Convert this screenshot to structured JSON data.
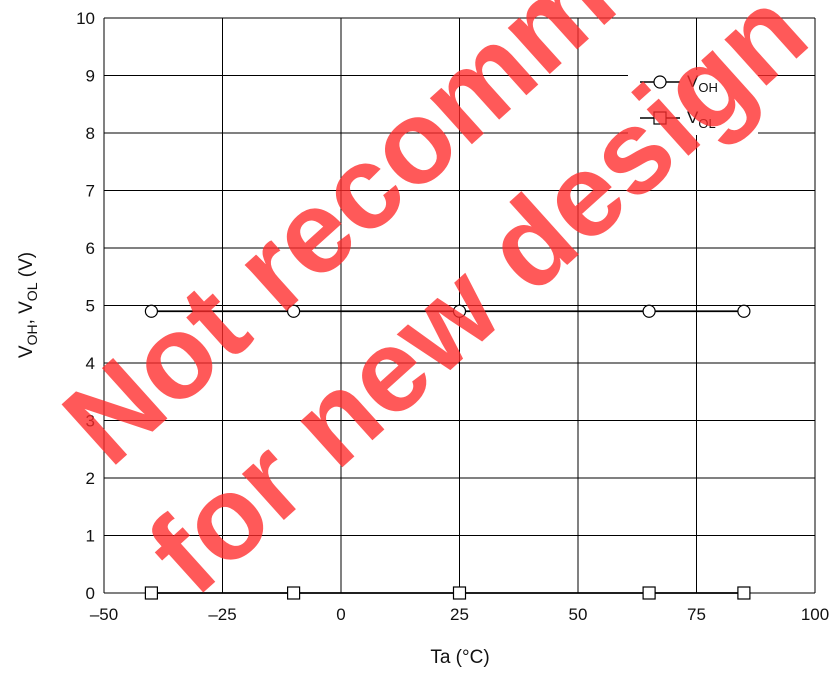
{
  "chart_data": {
    "type": "line",
    "xlabel": "Ta (°C)",
    "ylabel": "V",
    "ylabel_sub1": "OH",
    "ylabel_mid": ", V",
    "ylabel_sub2": "OL",
    "ylabel_tail": " (V)",
    "xlim": [
      -50,
      100
    ],
    "ylim": [
      0,
      10
    ],
    "x_ticks": [
      -50,
      -25,
      0,
      25,
      50,
      75,
      100
    ],
    "x_tick_labels": [
      "–50",
      "–25",
      "0",
      "25",
      "50",
      "75",
      "100"
    ],
    "y_ticks": [
      0,
      1,
      2,
      3,
      4,
      5,
      6,
      7,
      8,
      9,
      10
    ],
    "y_tick_labels": [
      "0",
      "1",
      "2",
      "3",
      "4",
      "5",
      "6",
      "7",
      "8",
      "9",
      "10"
    ],
    "grid": true,
    "legend_position": "top-right",
    "series": [
      {
        "name": "V",
        "name_sub": "OH",
        "marker": "circle",
        "x": [
          -40,
          -10,
          25,
          65,
          85
        ],
        "y": [
          4.9,
          4.9,
          4.9,
          4.9,
          4.9
        ]
      },
      {
        "name": "V",
        "name_sub": "OL",
        "marker": "square",
        "x": [
          -40,
          -10,
          25,
          65,
          85
        ],
        "y": [
          0,
          0,
          0,
          0,
          0
        ]
      }
    ]
  },
  "watermark": {
    "line1": "Not recommended",
    "line2": "for new design",
    "color": "#ff2b2b"
  }
}
